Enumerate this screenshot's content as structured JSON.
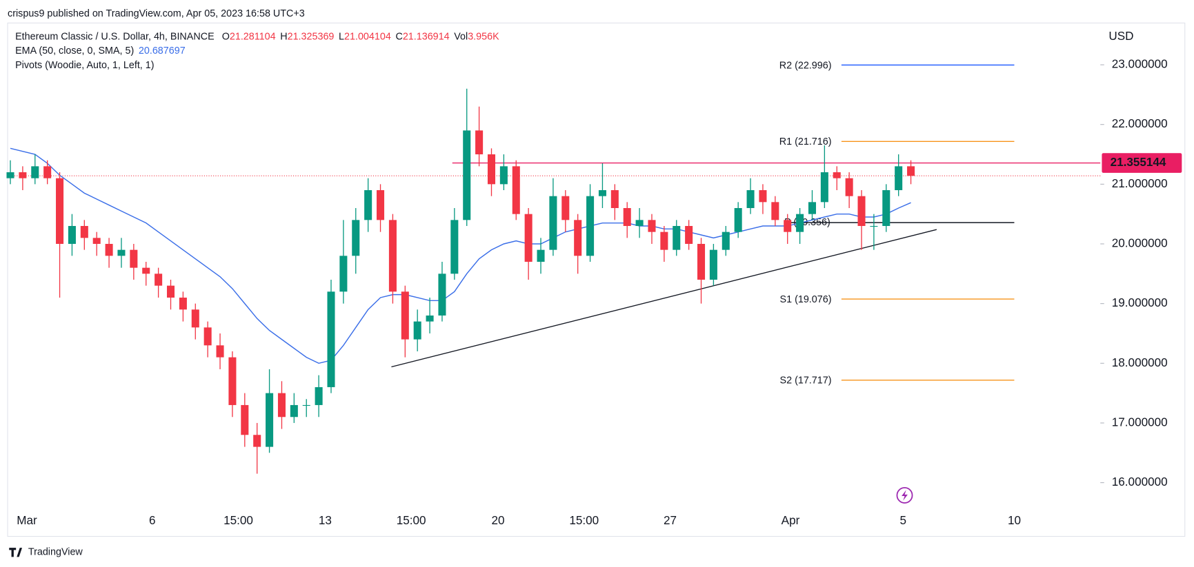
{
  "header": {
    "published": "crispus9 published on TradingView.com, Apr 05, 2023 16:58 UTC+3",
    "footer": "TradingView"
  },
  "chart_data": {
    "type": "candlestick",
    "symbol": "Ethereum Classic / U.S. Dollar, 4h, BINANCE",
    "ohlc_labels": [
      {
        "key": "O",
        "value": "21.281104"
      },
      {
        "key": "H",
        "value": "21.325369"
      },
      {
        "key": "L",
        "value": "21.004104"
      },
      {
        "key": "C",
        "value": "21.136914"
      },
      {
        "key": "Vol",
        "value": "3.956K"
      }
    ],
    "ema_label": "EMA (50, close, 0, SMA, 5)",
    "ema_value": "20.687697",
    "pivots_label": "Pivots (Woodie, Auto, 1, Left, 1)",
    "currency": "USD",
    "up_color": "#089981",
    "down_color": "#f23645",
    "ylim": [
      15.1,
      23.7
    ],
    "yticks": [
      {
        "value": 16,
        "label": "16.000000"
      },
      {
        "value": 17,
        "label": "17.000000"
      },
      {
        "value": 18,
        "label": "18.000000"
      },
      {
        "value": 19,
        "label": "19.000000"
      },
      {
        "value": 20,
        "label": "20.000000"
      },
      {
        "value": 21,
        "label": "21.000000"
      },
      {
        "value": 22,
        "label": "22.000000"
      },
      {
        "value": 23,
        "label": "23.000000"
      }
    ],
    "xticks": [
      "Mar",
      "6",
      "15:00",
      "13",
      "15:00",
      "20",
      "15:00",
      "27",
      "Apr",
      "5",
      "10"
    ],
    "candles": [
      [
        21.1,
        21.4,
        21.0,
        21.2
      ],
      [
        21.2,
        21.3,
        20.9,
        21.1
      ],
      [
        21.1,
        21.5,
        21.0,
        21.3
      ],
      [
        21.3,
        21.4,
        21.0,
        21.1
      ],
      [
        21.1,
        21.2,
        19.1,
        20.0
      ],
      [
        20.0,
        20.5,
        19.8,
        20.3
      ],
      [
        20.3,
        20.4,
        19.9,
        20.1
      ],
      [
        20.1,
        20.2,
        19.8,
        20.0
      ],
      [
        20.0,
        20.1,
        19.6,
        19.8
      ],
      [
        19.8,
        20.1,
        19.6,
        19.9
      ],
      [
        19.9,
        20.0,
        19.4,
        19.6
      ],
      [
        19.6,
        19.7,
        19.3,
        19.5
      ],
      [
        19.5,
        19.6,
        19.1,
        19.3
      ],
      [
        19.3,
        19.4,
        18.9,
        19.1
      ],
      [
        19.1,
        19.2,
        18.7,
        18.9
      ],
      [
        18.9,
        19.0,
        18.4,
        18.6
      ],
      [
        18.6,
        18.7,
        18.1,
        18.3
      ],
      [
        18.3,
        18.5,
        17.9,
        18.1
      ],
      [
        18.1,
        18.2,
        17.1,
        17.3
      ],
      [
        17.3,
        17.5,
        16.6,
        16.8
      ],
      [
        16.8,
        17.0,
        16.15,
        16.6
      ],
      [
        16.6,
        17.9,
        16.5,
        17.5
      ],
      [
        17.5,
        17.7,
        16.9,
        17.1
      ],
      [
        17.1,
        17.5,
        17.0,
        17.3
      ],
      [
        17.3,
        17.4,
        17.1,
        17.3
      ],
      [
        17.3,
        17.8,
        17.1,
        17.6
      ],
      [
        17.6,
        19.4,
        17.5,
        19.2
      ],
      [
        19.2,
        20.4,
        19.0,
        19.8
      ],
      [
        19.8,
        20.6,
        19.5,
        20.4
      ],
      [
        20.4,
        21.1,
        20.2,
        20.9
      ],
      [
        20.9,
        21.0,
        20.2,
        20.4
      ],
      [
        20.4,
        20.5,
        19.0,
        19.2
      ],
      [
        19.2,
        19.3,
        18.1,
        18.4
      ],
      [
        18.4,
        18.9,
        18.2,
        18.7
      ],
      [
        18.7,
        19.1,
        18.5,
        18.8
      ],
      [
        18.8,
        19.7,
        18.7,
        19.5
      ],
      [
        19.5,
        20.6,
        19.4,
        20.4
      ],
      [
        20.4,
        22.6,
        20.3,
        21.9
      ],
      [
        21.9,
        22.3,
        21.3,
        21.5
      ],
      [
        21.5,
        21.6,
        20.8,
        21.0
      ],
      [
        21.0,
        21.5,
        20.9,
        21.3
      ],
      [
        21.3,
        21.4,
        20.4,
        20.5
      ],
      [
        20.5,
        20.6,
        19.4,
        19.7
      ],
      [
        19.7,
        20.1,
        19.5,
        19.9
      ],
      [
        19.9,
        21.1,
        19.8,
        20.8
      ],
      [
        20.8,
        20.9,
        20.2,
        20.4
      ],
      [
        20.4,
        20.5,
        19.5,
        19.8
      ],
      [
        19.8,
        21.0,
        19.7,
        20.8
      ],
      [
        20.8,
        21.35,
        20.6,
        20.9
      ],
      [
        20.9,
        21.0,
        20.4,
        20.6
      ],
      [
        20.6,
        20.7,
        20.1,
        20.3
      ],
      [
        20.3,
        20.6,
        20.1,
        20.4
      ],
      [
        20.4,
        20.5,
        20.0,
        20.2
      ],
      [
        20.2,
        20.3,
        19.7,
        19.9
      ],
      [
        19.9,
        20.4,
        19.8,
        20.3
      ],
      [
        20.3,
        20.4,
        19.9,
        20.0
      ],
      [
        20.0,
        20.1,
        19.0,
        19.4
      ],
      [
        19.4,
        20.0,
        19.3,
        19.9
      ],
      [
        19.9,
        20.3,
        19.8,
        20.2
      ],
      [
        20.2,
        20.7,
        20.1,
        20.6
      ],
      [
        20.6,
        21.1,
        20.5,
        20.9
      ],
      [
        20.9,
        21.0,
        20.5,
        20.7
      ],
      [
        20.7,
        20.8,
        20.3,
        20.4
      ],
      [
        20.4,
        20.5,
        20.0,
        20.2
      ],
      [
        20.2,
        20.6,
        20.0,
        20.5
      ],
      [
        20.5,
        20.9,
        20.4,
        20.7
      ],
      [
        20.7,
        21.65,
        20.6,
        21.2
      ],
      [
        21.2,
        21.3,
        20.9,
        21.1
      ],
      [
        21.1,
        21.2,
        20.6,
        20.8
      ],
      [
        20.8,
        20.9,
        19.9,
        20.3
      ],
      [
        20.3,
        20.5,
        19.9,
        20.3
      ],
      [
        20.3,
        21.0,
        20.2,
        20.9
      ],
      [
        20.9,
        21.5,
        20.8,
        21.3
      ],
      [
        21.3,
        21.4,
        21.0,
        21.14
      ]
    ],
    "ema": {
      "color": "#3a6ee8",
      "values": [
        21.6,
        21.55,
        21.5,
        21.35,
        21.15,
        21.0,
        20.85,
        20.75,
        20.65,
        20.55,
        20.45,
        20.35,
        20.2,
        20.05,
        19.9,
        19.75,
        19.6,
        19.45,
        19.25,
        19.0,
        18.75,
        18.55,
        18.4,
        18.25,
        18.1,
        18.0,
        18.05,
        18.3,
        18.6,
        18.9,
        19.1,
        19.15,
        19.15,
        19.1,
        19.05,
        19.05,
        19.2,
        19.5,
        19.75,
        19.9,
        20.0,
        20.05,
        20.0,
        20.0,
        20.1,
        20.2,
        20.25,
        20.3,
        20.35,
        20.35,
        20.35,
        20.3,
        20.3,
        20.25,
        20.25,
        20.2,
        20.15,
        20.1,
        20.15,
        20.2,
        20.25,
        20.3,
        20.3,
        20.3,
        20.35,
        20.4,
        20.45,
        20.5,
        20.5,
        20.45,
        20.45,
        20.5,
        20.6,
        20.69
      ]
    },
    "pivots": [
      {
        "value": 22.996,
        "label": "R2 (22.996)",
        "color": "#2962ff"
      },
      {
        "value": 21.716,
        "label": "R1 (21.716)",
        "color": "#f7931a"
      },
      {
        "value": 20.356,
        "label": "P (20.356)",
        "color": "#131722"
      },
      {
        "value": 19.076,
        "label": "S1 (19.076)",
        "color": "#f7931a"
      },
      {
        "value": 17.717,
        "label": "S2 (17.717)",
        "color": "#f7931a"
      }
    ],
    "price_tag": 21.355144,
    "price_tag_color": "#e91e63",
    "trendline": [
      17.94,
      20.24
    ]
  }
}
